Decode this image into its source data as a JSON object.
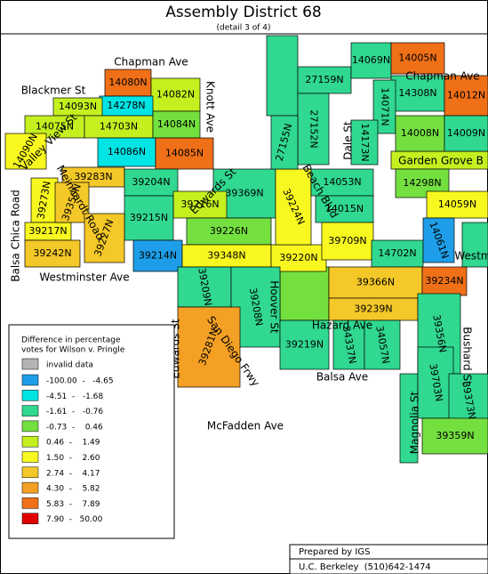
{
  "header": {
    "title": "Assembly District 68",
    "subtitle": "(detail 3 of 4)"
  },
  "streets": [
    "Chapman Ave",
    "Blackmer St",
    "Knott Ave",
    "Valley View St",
    "Beach Blvd",
    "Dale St",
    "Chapman Ave",
    "Garden Grove B",
    "Balsa Chica Road",
    "Westminster Ave",
    "Edwards St",
    "Edwards St",
    "Hoover St",
    "San Diego Frwy",
    "Hazard Ave",
    "Balsa Ave",
    "McFadden Ave",
    "Magnolia St",
    "Bushard St",
    "Meinhardt Road",
    "Westm"
  ],
  "precincts": [
    "14080N",
    "14082N",
    "14278N",
    "14093N",
    "14075N",
    "14703N",
    "14084N",
    "14086N",
    "14085N",
    "14090N",
    "39283N",
    "39204N",
    "39369N",
    "39216N",
    "39215N",
    "39226N",
    "39273N",
    "39217N",
    "39350N",
    "39227N",
    "39242N",
    "39214N",
    "39348N",
    "39220N",
    "39224N",
    "14053N",
    "14015N",
    "39709N",
    "14702N",
    "27159N",
    "27152N",
    "27155N",
    "14069N",
    "14005N",
    "14308N",
    "14012N",
    "14071N",
    "14173N",
    "14008N",
    "14009N",
    "14298N",
    "14059N",
    "14061N",
    "39366N",
    "39234N",
    "39239N",
    "39209N",
    "39208N",
    "39281N",
    "39219N",
    "34337N",
    "34057N",
    "39356N",
    "39703N",
    "39373N",
    "39359N"
  ],
  "legend": {
    "title": [
      "Difference in percentage",
      "votes for Wilson v. Pringle"
    ],
    "invalid": "invalid data",
    "invalid_color": "#b4b4b4",
    "rows": [
      {
        "label": "-100.00  -   -4.65",
        "color": "#1e9ee8"
      },
      {
        "label": "-4.51  -   -1.68",
        "color": "#00e4e4"
      },
      {
        "label": "-1.61  -   -0.76",
        "color": "#30d890"
      },
      {
        "label": "-0.73  -    0.46",
        "color": "#74e040"
      },
      {
        "label": "0.46  -    1.49",
        "color": "#c4f020"
      },
      {
        "label": "1.50  -    2.60",
        "color": "#f8f820"
      },
      {
        "label": "2.74  -    4.17",
        "color": "#f4c828"
      },
      {
        "label": "4.30  -    5.82",
        "color": "#f4a024"
      },
      {
        "label": "5.83  -    7.89",
        "color": "#f07018"
      },
      {
        "label": "7.90  -   50.00",
        "color": "#e00000"
      }
    ]
  },
  "footer": [
    "Prepared by IGS",
    "U.C. Berkeley  (510)642-1474"
  ]
}
